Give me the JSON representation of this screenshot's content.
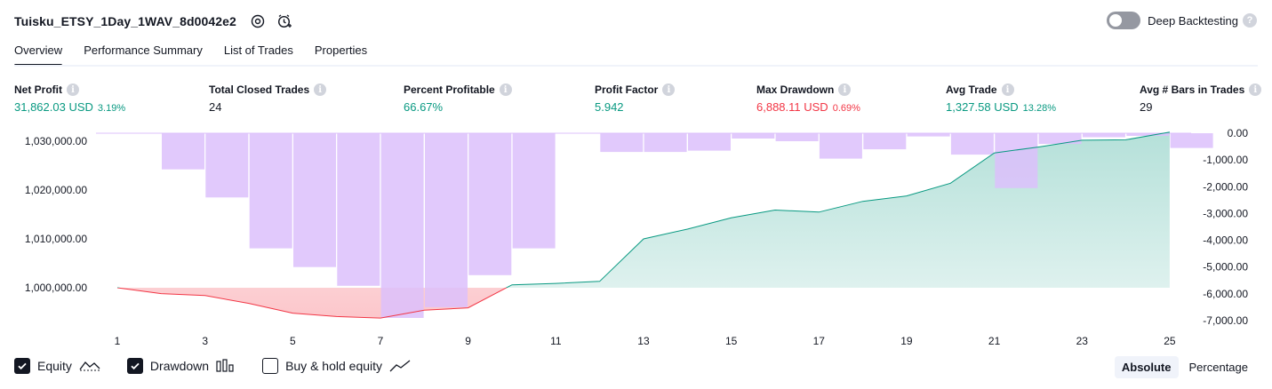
{
  "header": {
    "strategy_name": "Tuisku_ETSY_1Day_1WAV_8d0042e2",
    "deep_backtesting_label": "Deep Backtesting",
    "help": "?"
  },
  "tabs": [
    {
      "label": "Overview"
    },
    {
      "label": "Performance Summary"
    },
    {
      "label": "List of Trades"
    },
    {
      "label": "Properties"
    }
  ],
  "metrics": {
    "net_profit": {
      "label": "Net Profit",
      "value": "31,862.03 USD",
      "sub": "3.19%"
    },
    "total_closed_trades": {
      "label": "Total Closed Trades",
      "value": "24"
    },
    "percent_profitable": {
      "label": "Percent Profitable",
      "value": "66.67%"
    },
    "profit_factor": {
      "label": "Profit Factor",
      "value": "5.942"
    },
    "max_drawdown": {
      "label": "Max Drawdown",
      "value": "6,888.11 USD",
      "sub": "0.69%"
    },
    "avg_trade": {
      "label": "Avg Trade",
      "value": "1,327.58 USD",
      "sub": "13.28%"
    },
    "avg_bars": {
      "label": "Avg # Bars in Trades",
      "value": "29"
    },
    "info_glyph": "i"
  },
  "legend": {
    "equity": {
      "label": "Equity",
      "checked": true
    },
    "drawdown": {
      "label": "Drawdown",
      "checked": true
    },
    "buy_hold": {
      "label": "Buy & hold equity",
      "checked": false
    }
  },
  "mode": {
    "absolute": "Absolute",
    "percentage": "Percentage"
  },
  "colors": {
    "equity_pos": "#089981",
    "equity_neg": "#f23645",
    "drawdown_bar": "#dcc0fb",
    "text": "#131722"
  },
  "chart_data": {
    "type": "area",
    "x": [
      1,
      2,
      3,
      4,
      5,
      6,
      7,
      8,
      9,
      10,
      11,
      12,
      13,
      14,
      15,
      16,
      17,
      18,
      19,
      20,
      21,
      22,
      23,
      24,
      25
    ],
    "x_ticks": [
      "1",
      "3",
      "5",
      "7",
      "9",
      "11",
      "13",
      "15",
      "17",
      "19",
      "21",
      "23",
      "25"
    ],
    "x_tick_values": [
      1,
      3,
      5,
      7,
      9,
      11,
      13,
      15,
      17,
      19,
      21,
      23,
      25
    ],
    "series": [
      {
        "name": "Equity",
        "axis": "left",
        "values": [
          1000000,
          998800,
          998400,
          996800,
          994800,
          994100,
          993800,
          995400,
          995900,
          1000600,
          1000900,
          1001300,
          1010000,
          1012000,
          1014300,
          1015900,
          1015500,
          1017700,
          1018800,
          1021400,
          1027600,
          1028800,
          1030200,
          1030300,
          1031862
        ]
      },
      {
        "name": "Drawdown",
        "axis": "right",
        "values": [
          0,
          -1350,
          -2400,
          -4300,
          -5000,
          -5700,
          -6900,
          -6500,
          -5300,
          -4300,
          0,
          -700,
          -700,
          -650,
          -200,
          -300,
          -950,
          -600,
          -120,
          -800,
          -2050,
          -400,
          -150,
          -100,
          -550
        ]
      }
    ],
    "left_axis": {
      "ticks": [
        "1,030,000.00",
        "1,020,000.00",
        "1,010,000.00",
        "1,000,000.00"
      ],
      "tick_values": [
        1030000,
        1020000,
        1010000,
        1000000
      ],
      "range": [
        992000,
        1031862
      ]
    },
    "right_axis": {
      "ticks": [
        "0.00",
        "-1,000.00",
        "-2,000.00",
        "-3,000.00",
        "-4,000.00",
        "-5,000.00",
        "-6,000.00",
        "-7,000.00"
      ],
      "tick_values": [
        0,
        -1000,
        -2000,
        -3000,
        -4000,
        -5000,
        -6000,
        -7000
      ],
      "range": [
        -7000,
        0
      ]
    },
    "baseline": 1000000,
    "title": "",
    "legend": [
      "Equity",
      "Drawdown",
      "Buy & hold equity"
    ]
  }
}
